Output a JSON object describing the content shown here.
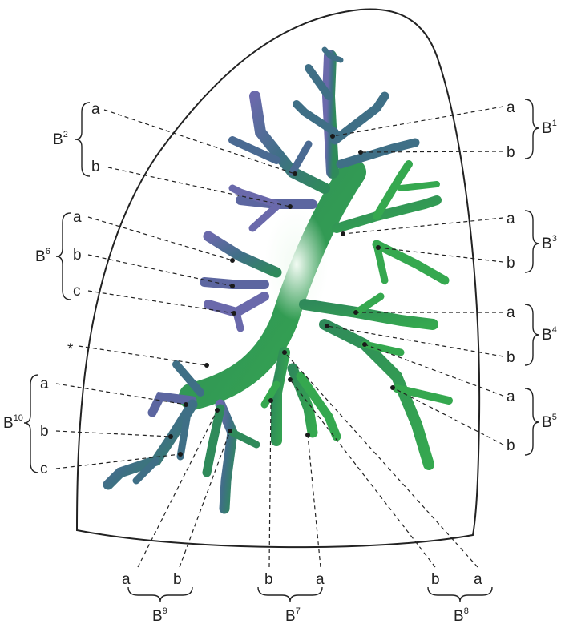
{
  "groups": [
    {
      "id": "b1",
      "base": "B",
      "sup": "1",
      "sub": [
        "a",
        "b"
      ]
    },
    {
      "id": "b2",
      "base": "B",
      "sup": "2",
      "sub": [
        "a",
        "b"
      ]
    },
    {
      "id": "b3",
      "base": "B",
      "sup": "3",
      "sub": [
        "a",
        "b"
      ]
    },
    {
      "id": "b4",
      "base": "B",
      "sup": "4",
      "sub": [
        "a",
        "b"
      ]
    },
    {
      "id": "b5",
      "base": "B",
      "sup": "5",
      "sub": [
        "a",
        "b"
      ]
    },
    {
      "id": "b6",
      "base": "B",
      "sup": "6",
      "sub": [
        "a",
        "b",
        "c"
      ]
    },
    {
      "id": "b7",
      "base": "B",
      "sup": "7",
      "sub": [
        "b",
        "a"
      ]
    },
    {
      "id": "b8",
      "base": "B",
      "sup": "8",
      "sub": [
        "b",
        "a"
      ]
    },
    {
      "id": "b9",
      "base": "B",
      "sup": "9",
      "sub": [
        "a",
        "b"
      ]
    },
    {
      "id": "b10",
      "base": "B",
      "sup": "10",
      "sub": [
        "a",
        "b",
        "c"
      ]
    }
  ],
  "asterisk": "*",
  "colors": {
    "outline": "#222222",
    "upper_lobe_tree": "#3f6f86",
    "upper_tips": "#6d6aa8",
    "lower_lobe_tree": "#2f9a4a",
    "highlight": "#d9f0dc"
  }
}
